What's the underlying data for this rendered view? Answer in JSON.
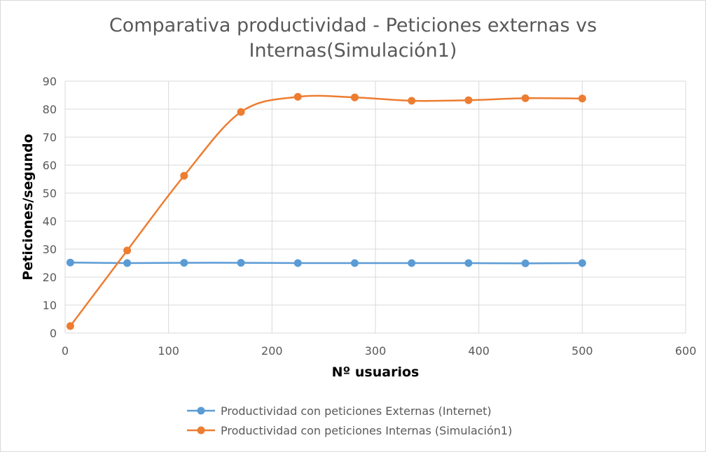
{
  "chart_data": {
    "type": "line",
    "title_lines": [
      "Comparativa productividad - Peticiones externas vs",
      "Internas(Simulación1)"
    ],
    "xlabel": "Nº usuarios",
    "ylabel": "Peticiones/segundo",
    "xlim": [
      0,
      600
    ],
    "ylim": [
      0,
      90
    ],
    "xticks": [
      0,
      100,
      200,
      300,
      400,
      500,
      600
    ],
    "yticks": [
      0,
      10,
      20,
      30,
      40,
      50,
      60,
      70,
      80,
      90
    ],
    "grid": true,
    "smooth": true,
    "legend_position": "bottom",
    "series": [
      {
        "name": "Productividad con peticiones Externas (Internet)",
        "color": "#5b9bd5",
        "x": [
          5,
          60,
          115,
          170,
          225,
          280,
          335,
          390,
          445,
          500
        ],
        "y": [
          25.2,
          25.0,
          25.1,
          25.1,
          25.0,
          25.0,
          25.0,
          25.0,
          24.9,
          25.0
        ]
      },
      {
        "name": "Productividad con peticiones Internas (Simulación1)",
        "color": "#ed7d31",
        "x": [
          5,
          60,
          115,
          170,
          225,
          280,
          335,
          390,
          445,
          500
        ],
        "y": [
          2.5,
          29.5,
          56.2,
          79.0,
          84.4,
          84.2,
          83.0,
          83.2,
          83.9,
          83.8
        ]
      }
    ]
  }
}
